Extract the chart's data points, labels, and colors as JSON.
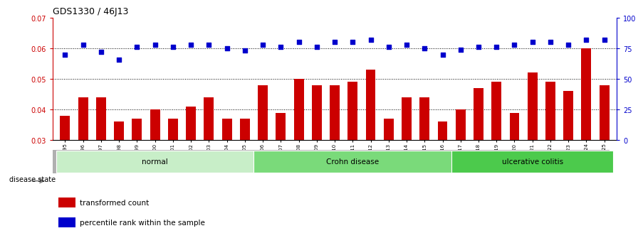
{
  "title": "GDS1330 / 46J13",
  "categories": [
    "GSM29595",
    "GSM29596",
    "GSM29597",
    "GSM29598",
    "GSM29599",
    "GSM29600",
    "GSM29601",
    "GSM29602",
    "GSM29603",
    "GSM29604",
    "GSM29605",
    "GSM29606",
    "GSM29607",
    "GSM29608",
    "GSM29609",
    "GSM29610",
    "GSM29611",
    "GSM29612",
    "GSM29613",
    "GSM29614",
    "GSM29615",
    "GSM29616",
    "GSM29617",
    "GSM29618",
    "GSM29619",
    "GSM29620",
    "GSM29621",
    "GSM29622",
    "GSM29623",
    "GSM29624",
    "GSM29625"
  ],
  "bar_values": [
    0.038,
    0.044,
    0.044,
    0.036,
    0.037,
    0.04,
    0.037,
    0.041,
    0.044,
    0.037,
    0.037,
    0.048,
    0.039,
    0.05,
    0.048,
    0.048,
    0.049,
    0.053,
    0.037,
    0.044,
    0.044,
    0.036,
    0.04,
    0.047,
    0.049,
    0.039,
    0.052,
    0.049,
    0.046,
    0.06,
    0.048
  ],
  "blue_values": [
    70,
    78,
    72,
    66,
    76,
    78,
    76,
    78,
    78,
    75,
    73,
    78,
    76,
    80,
    76,
    80,
    80,
    82,
    76,
    78,
    75,
    70,
    74,
    76,
    76,
    78,
    80,
    80,
    78,
    82,
    82
  ],
  "bar_color": "#CC0000",
  "blue_color": "#0000CC",
  "ylim_left": [
    0.03,
    0.07
  ],
  "ylim_right": [
    0,
    100
  ],
  "yticks_left": [
    0.03,
    0.04,
    0.05,
    0.06,
    0.07
  ],
  "yticks_right": [
    0,
    25,
    50,
    75,
    100
  ],
  "groups": [
    {
      "label": "normal",
      "start": 0,
      "end": 10,
      "color": "#c8eec8"
    },
    {
      "label": "Crohn disease",
      "start": 11,
      "end": 21,
      "color": "#7ada7a"
    },
    {
      "label": "ulcerative colitis",
      "start": 22,
      "end": 30,
      "color": "#4cca4c"
    }
  ],
  "disease_state_label": "disease state",
  "legend": [
    {
      "label": "transformed count",
      "color": "#CC0000"
    },
    {
      "label": "percentile rank within the sample",
      "color": "#0000CC"
    }
  ],
  "background_color": "#ffffff",
  "fig_width": 9.11,
  "fig_height": 3.45,
  "dpi": 100
}
